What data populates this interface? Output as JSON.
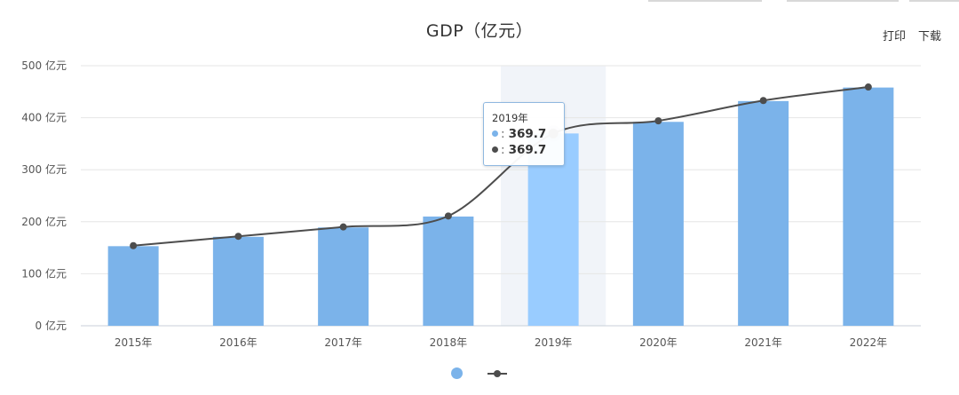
{
  "toolbar": {
    "print_label": "打印",
    "download_label": "下载"
  },
  "tooltip": {
    "title": "2019年",
    "bar_value": "369.7",
    "line_value": "369.7"
  },
  "colors": {
    "bar": "#7bb3ea",
    "bar_highlight": "#99ccff",
    "line": "#4d4d4d",
    "highlight_band": "#f1f4f9",
    "grid": "#e6e6e6"
  },
  "chart_data": {
    "type": "bar",
    "title": "GDP（亿元）",
    "categories": [
      "2015年",
      "2016年",
      "2017年",
      "2018年",
      "2019年",
      "2020年",
      "2021年",
      "2022年"
    ],
    "y_ticks": [
      "0 亿元",
      "100 亿元",
      "200 亿元",
      "300 亿元",
      "400 亿元",
      "500 亿元"
    ],
    "ylim": [
      0,
      500
    ],
    "grid": true,
    "legend_position": "bottom-center",
    "highlighted_category": "2019年",
    "series": [
      {
        "type": "bar",
        "values": [
          153,
          171,
          189,
          210,
          369.7,
          392,
          432,
          458
        ]
      },
      {
        "type": "line",
        "values": [
          154,
          172,
          190,
          211,
          369.7,
          394,
          433,
          459
        ]
      }
    ]
  }
}
